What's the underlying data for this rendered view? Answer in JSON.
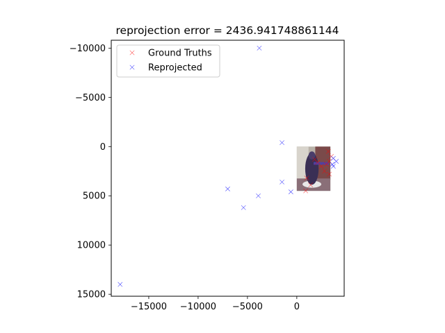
{
  "chart_data": {
    "type": "scatter",
    "title": "reprojection error = 2436.941748861144",
    "xlabel": "",
    "ylabel": "",
    "xlim": [
      -18800,
      4800
    ],
    "ylim": [
      15200,
      -10800
    ],
    "y_inverted": true,
    "grid": false,
    "legend_placement": "top-left",
    "x_ticks": [
      {
        "value": -15000,
        "label": "−15000"
      },
      {
        "value": -10000,
        "label": "−10000"
      },
      {
        "value": -5000,
        "label": "−5000"
      },
      {
        "value": 0,
        "label": "0"
      }
    ],
    "y_ticks": [
      {
        "value": -10000,
        "label": "−10000"
      },
      {
        "value": -5000,
        "label": "−5000"
      },
      {
        "value": 0,
        "label": "0"
      },
      {
        "value": 5000,
        "label": "5000"
      },
      {
        "value": 10000,
        "label": "10000"
      },
      {
        "value": 15000,
        "label": "15000"
      }
    ],
    "background_image": {
      "description_icon": "photo-thumbnail",
      "extent": {
        "x": [
          0,
          3400
        ],
        "y": [
          0,
          4500
        ]
      }
    },
    "series": [
      {
        "name": "Ground Truths",
        "marker": "x",
        "color": "#ff0000",
        "points": [
          [
            3200,
            500
          ],
          [
            3500,
            1000
          ],
          [
            3300,
            1500
          ],
          [
            3000,
            1800
          ],
          [
            2500,
            2000
          ],
          [
            2100,
            1600
          ],
          [
            1800,
            1300
          ],
          [
            2800,
            2500
          ],
          [
            3300,
            2800
          ],
          [
            1000,
            3200
          ],
          [
            1400,
            3900
          ],
          [
            900,
            4500
          ]
        ]
      },
      {
        "name": "Reprojected",
        "marker": "x",
        "color": "#0000ff",
        "points": [
          [
            -3800,
            -10000
          ],
          [
            -1500,
            -400
          ],
          [
            3700,
            1200
          ],
          [
            4000,
            1500
          ],
          [
            3600,
            1800
          ],
          [
            3700,
            2000
          ],
          [
            -1500,
            3600
          ],
          [
            -600,
            4600
          ],
          [
            -7000,
            4300
          ],
          [
            -3900,
            5000
          ],
          [
            -5400,
            6200
          ],
          [
            -17900,
            14000
          ]
        ]
      }
    ]
  },
  "colors": {
    "ground_truth": "#ff0000",
    "reprojected": "#0000ff",
    "axes": "#000000",
    "legend_border": "#cccccc"
  }
}
